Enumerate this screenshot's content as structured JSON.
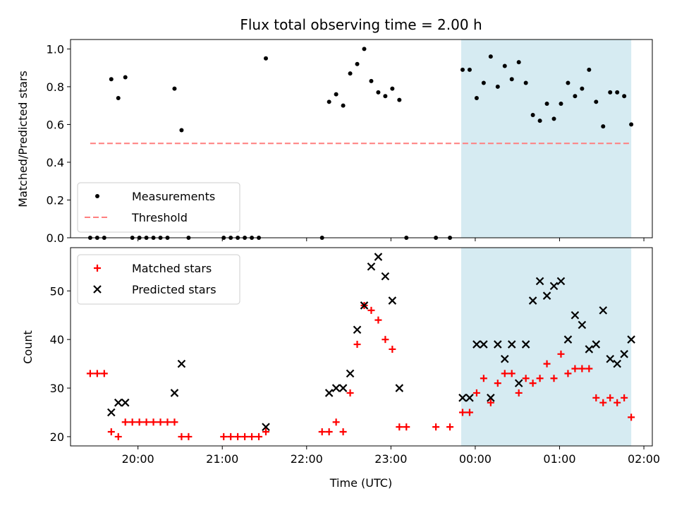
{
  "chart_data": [
    {
      "type": "scatter",
      "title": "Flux total observing time = 2.00 h",
      "ylabel": "Matched/Predicted stars",
      "ylim": [
        0,
        1.05
      ],
      "yticks": [
        "0.0",
        "0.2",
        "0.4",
        "0.6",
        "0.8",
        "1.0"
      ],
      "legend_position": "lower-left",
      "highlight": {
        "start": "23:50",
        "end": "01:51",
        "color": "#add8e6"
      },
      "series": [
        {
          "name": "Measurements",
          "color": "#000000",
          "marker": "dot",
          "points": [
            [
              "19:26",
              0.0
            ],
            [
              "19:31",
              0.0
            ],
            [
              "19:36",
              0.0
            ],
            [
              "19:41",
              0.84
            ],
            [
              "19:46",
              0.74
            ],
            [
              "19:51",
              0.85
            ],
            [
              "19:56",
              0.0
            ],
            [
              "20:01",
              0.0
            ],
            [
              "20:06",
              0.0
            ],
            [
              "20:11",
              0.0
            ],
            [
              "20:16",
              0.0
            ],
            [
              "20:21",
              0.0
            ],
            [
              "20:26",
              0.79
            ],
            [
              "20:31",
              0.57
            ],
            [
              "20:36",
              0.0
            ],
            [
              "21:01",
              0.0
            ],
            [
              "21:06",
              0.0
            ],
            [
              "21:11",
              0.0
            ],
            [
              "21:16",
              0.0
            ],
            [
              "21:21",
              0.0
            ],
            [
              "21:26",
              0.0
            ],
            [
              "21:31",
              0.95
            ],
            [
              "22:11",
              0.0
            ],
            [
              "22:16",
              0.72
            ],
            [
              "22:21",
              0.76
            ],
            [
              "22:26",
              0.7
            ],
            [
              "22:31",
              0.87
            ],
            [
              "22:36",
              0.92
            ],
            [
              "22:41",
              1.0
            ],
            [
              "22:46",
              0.83
            ],
            [
              "22:51",
              0.77
            ],
            [
              "22:56",
              0.75
            ],
            [
              "23:01",
              0.79
            ],
            [
              "23:06",
              0.73
            ],
            [
              "23:11",
              0.0
            ],
            [
              "23:32",
              0.0
            ],
            [
              "23:42",
              0.0
            ],
            [
              "23:51",
              0.89
            ],
            [
              "23:56",
              0.89
            ],
            [
              "00:01",
              0.74
            ],
            [
              "00:06",
              0.82
            ],
            [
              "00:11",
              0.96
            ],
            [
              "00:16",
              0.8
            ],
            [
              "00:21",
              0.91
            ],
            [
              "00:26",
              0.84
            ],
            [
              "00:31",
              0.93
            ],
            [
              "00:36",
              0.82
            ],
            [
              "00:41",
              0.65
            ],
            [
              "00:46",
              0.62
            ],
            [
              "00:51",
              0.71
            ],
            [
              "00:56",
              0.63
            ],
            [
              "01:01",
              0.71
            ],
            [
              "01:06",
              0.82
            ],
            [
              "01:11",
              0.75
            ],
            [
              "01:16",
              0.79
            ],
            [
              "01:21",
              0.89
            ],
            [
              "01:26",
              0.72
            ],
            [
              "01:31",
              0.59
            ],
            [
              "01:36",
              0.77
            ],
            [
              "01:41",
              0.77
            ],
            [
              "01:46",
              0.75
            ],
            [
              "01:51",
              0.6
            ]
          ]
        },
        {
          "name": "Threshold",
          "color": "#ff7f7f",
          "line": "dashed",
          "points": [
            [
              "19:26",
              0.5
            ],
            [
              "01:51",
              0.5
            ]
          ]
        }
      ]
    },
    {
      "type": "scatter",
      "xlabel": "Time (UTC)",
      "ylabel": "Count",
      "ylim": [
        18.1,
        58.9
      ],
      "yticks": [
        "20",
        "30",
        "40",
        "50"
      ],
      "xticks": [
        "20:00",
        "21:00",
        "22:00",
        "23:00",
        "00:00",
        "01:00",
        "02:00"
      ],
      "xlim": [
        "19:12",
        "02:06"
      ],
      "legend_position": "upper-left",
      "highlight": {
        "start": "23:50",
        "end": "01:51",
        "color": "#add8e6"
      },
      "series": [
        {
          "name": "Matched stars",
          "color": "#ff0000",
          "marker": "plus",
          "points": [
            [
              "19:26",
              33
            ],
            [
              "19:31",
              33
            ],
            [
              "19:36",
              33
            ],
            [
              "19:41",
              21
            ],
            [
              "19:46",
              20
            ],
            [
              "19:51",
              23
            ],
            [
              "19:56",
              23
            ],
            [
              "20:01",
              23
            ],
            [
              "20:06",
              23
            ],
            [
              "20:11",
              23
            ],
            [
              "20:16",
              23
            ],
            [
              "20:21",
              23
            ],
            [
              "20:26",
              23
            ],
            [
              "20:31",
              20
            ],
            [
              "20:36",
              20
            ],
            [
              "21:01",
              20
            ],
            [
              "21:06",
              20
            ],
            [
              "21:11",
              20
            ],
            [
              "21:16",
              20
            ],
            [
              "21:21",
              20
            ],
            [
              "21:26",
              20
            ],
            [
              "21:31",
              21
            ],
            [
              "22:11",
              21
            ],
            [
              "22:16",
              21
            ],
            [
              "22:21",
              23
            ],
            [
              "22:26",
              21
            ],
            [
              "22:31",
              29
            ],
            [
              "22:36",
              39
            ],
            [
              "22:41",
              47
            ],
            [
              "22:46",
              46
            ],
            [
              "22:51",
              44
            ],
            [
              "22:56",
              40
            ],
            [
              "23:01",
              38
            ],
            [
              "23:06",
              22
            ],
            [
              "23:11",
              22
            ],
            [
              "23:32",
              22
            ],
            [
              "23:42",
              22
            ],
            [
              "23:51",
              25
            ],
            [
              "23:56",
              25
            ],
            [
              "00:01",
              29
            ],
            [
              "00:06",
              32
            ],
            [
              "00:11",
              27
            ],
            [
              "00:16",
              31
            ],
            [
              "00:21",
              33
            ],
            [
              "00:26",
              33
            ],
            [
              "00:31",
              29
            ],
            [
              "00:36",
              32
            ],
            [
              "00:41",
              31
            ],
            [
              "00:46",
              32
            ],
            [
              "00:51",
              35
            ],
            [
              "00:56",
              32
            ],
            [
              "01:01",
              37
            ],
            [
              "01:06",
              33
            ],
            [
              "01:11",
              34
            ],
            [
              "01:16",
              34
            ],
            [
              "01:21",
              34
            ],
            [
              "01:26",
              28
            ],
            [
              "01:31",
              27
            ],
            [
              "01:36",
              28
            ],
            [
              "01:41",
              27
            ],
            [
              "01:46",
              28
            ],
            [
              "01:51",
              24
            ]
          ]
        },
        {
          "name": "Predicted stars",
          "color": "#000000",
          "marker": "x",
          "points": [
            [
              "19:41",
              25
            ],
            [
              "19:46",
              27
            ],
            [
              "19:51",
              27
            ],
            [
              "20:26",
              29
            ],
            [
              "20:31",
              35
            ],
            [
              "21:31",
              22
            ],
            [
              "22:16",
              29
            ],
            [
              "22:21",
              30
            ],
            [
              "22:26",
              30
            ],
            [
              "22:31",
              33
            ],
            [
              "22:36",
              42
            ],
            [
              "22:41",
              47
            ],
            [
              "22:46",
              55
            ],
            [
              "22:51",
              57
            ],
            [
              "22:56",
              53
            ],
            [
              "23:01",
              48
            ],
            [
              "23:06",
              30
            ],
            [
              "23:51",
              28
            ],
            [
              "23:56",
              28
            ],
            [
              "00:01",
              39
            ],
            [
              "00:06",
              39
            ],
            [
              "00:11",
              28
            ],
            [
              "00:16",
              39
            ],
            [
              "00:21",
              36
            ],
            [
              "00:26",
              39
            ],
            [
              "00:31",
              31
            ],
            [
              "00:36",
              39
            ],
            [
              "00:41",
              48
            ],
            [
              "00:46",
              52
            ],
            [
              "00:51",
              49
            ],
            [
              "00:56",
              51
            ],
            [
              "01:01",
              52
            ],
            [
              "01:06",
              40
            ],
            [
              "01:11",
              45
            ],
            [
              "01:16",
              43
            ],
            [
              "01:21",
              38
            ],
            [
              "01:26",
              39
            ],
            [
              "01:31",
              46
            ],
            [
              "01:36",
              36
            ],
            [
              "01:41",
              35
            ],
            [
              "01:46",
              37
            ],
            [
              "01:51",
              40
            ]
          ]
        }
      ]
    }
  ]
}
